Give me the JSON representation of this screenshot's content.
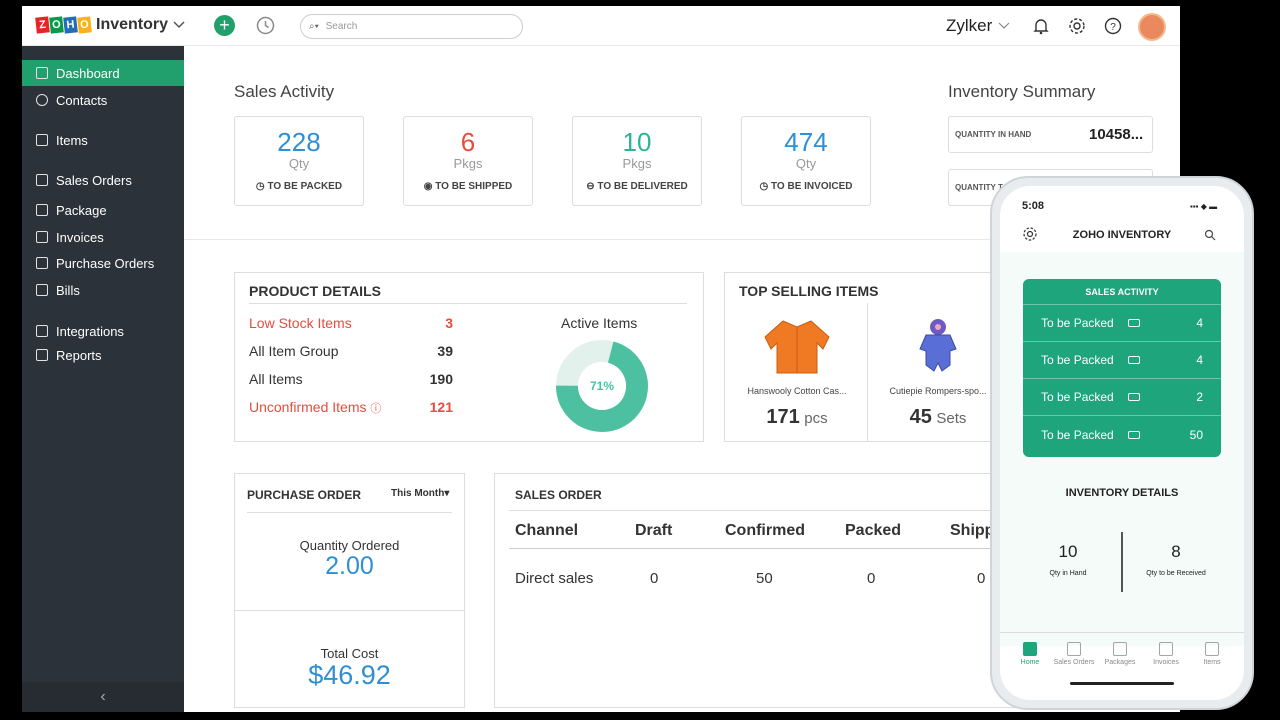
{
  "app": {
    "logo_letters": [
      "Z",
      "O",
      "H",
      "O"
    ],
    "logo_colors": [
      "#e42527",
      "#089949",
      "#226db4",
      "#f9b21d"
    ],
    "product": "Inventory",
    "search_placeholder": "Search",
    "org_name": "Zylker"
  },
  "sidebar": {
    "items": [
      {
        "label": "Dashboard",
        "icon": "home-icon",
        "active": true
      },
      {
        "label": "Contacts",
        "icon": "user-icon"
      },
      {
        "label": "Items",
        "icon": "basket-icon"
      },
      {
        "label": "Sales Orders",
        "icon": "cart-icon"
      },
      {
        "label": "Package",
        "icon": "package-icon"
      },
      {
        "label": "Invoices",
        "icon": "invoice-icon"
      },
      {
        "label": "Purchase Orders",
        "icon": "bag-icon"
      },
      {
        "label": "Bills",
        "icon": "bill-icon"
      },
      {
        "label": "Integrations",
        "icon": "integrations-icon"
      },
      {
        "label": "Reports",
        "icon": "reports-icon"
      }
    ],
    "collapse": "‹"
  },
  "sales_activity": {
    "title": "Sales Activity",
    "cards": [
      {
        "value": "228",
        "unit": "Qty",
        "label": "TO BE PACKED",
        "color": "#2f8fd4"
      },
      {
        "value": "6",
        "unit": "Pkgs",
        "label": "TO BE SHIPPED",
        "color": "#e74c3c"
      },
      {
        "value": "10",
        "unit": "Pkgs",
        "label": "TO BE DELIVERED",
        "color": "#2bb596"
      },
      {
        "value": "474",
        "unit": "Qty",
        "label": "TO BE INVOICED",
        "color": "#2f8fd4"
      }
    ]
  },
  "inventory_summary": {
    "title": "Inventory Summary",
    "rows": [
      {
        "label": "QUANTITY IN HAND",
        "value": "10458..."
      },
      {
        "label": "QUANTITY T",
        "value": ""
      }
    ]
  },
  "product_details": {
    "title": "PRODUCT DETAILS",
    "rows": [
      {
        "label": "Low Stock Items",
        "value": "3",
        "alert": true
      },
      {
        "label": "All Item Group",
        "value": "39",
        "alert": false
      },
      {
        "label": "All Items",
        "value": "190",
        "alert": false
      },
      {
        "label": "Unconfirmed Items",
        "value": "121",
        "alert": true
      }
    ],
    "active_items_label": "Active Items",
    "active_percent": 71,
    "active_percent_text": "71%"
  },
  "top_selling": {
    "title": "TOP SELLING ITEMS",
    "items": [
      {
        "name": "Hanswooly Cotton Cas...",
        "qty": "171",
        "unit": "pcs"
      },
      {
        "name": "Cutiepie Rompers-spo...",
        "qty": "45",
        "unit": "Sets"
      }
    ]
  },
  "purchase_order": {
    "title": "PURCHASE ORDER",
    "period": "This Month",
    "qty_label": "Quantity Ordered",
    "qty_value": "2.00",
    "cost_label": "Total Cost",
    "cost_value": "$46.92"
  },
  "sales_order": {
    "title": "SALES ORDER",
    "columns": [
      "Channel",
      "Draft",
      "Confirmed",
      "Packed",
      "Shipp"
    ],
    "rows": [
      {
        "cells": [
          "Direct sales",
          "0",
          "50",
          "0",
          "0"
        ]
      }
    ]
  },
  "phone": {
    "time": "5:08",
    "title": "ZOHO INVENTORY",
    "sales_activity_title": "SALES ACTIVITY",
    "rows": [
      {
        "label": "To be Packed",
        "value": "4"
      },
      {
        "label": "To be Packed",
        "value": "4"
      },
      {
        "label": "To be Packed",
        "value": "2"
      },
      {
        "label": "To be Packed",
        "value": "50"
      }
    ],
    "inventory_title": "INVENTORY DETAILS",
    "in_hand_value": "10",
    "in_hand_label": "Qty in Hand",
    "to_receive_value": "8",
    "to_receive_label": "Qty to be Received",
    "tabs": [
      "Home",
      "Sales Orders",
      "Packages",
      "Invoices",
      "Items"
    ]
  },
  "colors": {
    "brand_green": "#21a06e",
    "sidebar": "#2b3239",
    "teal": "#4cc0a0"
  }
}
